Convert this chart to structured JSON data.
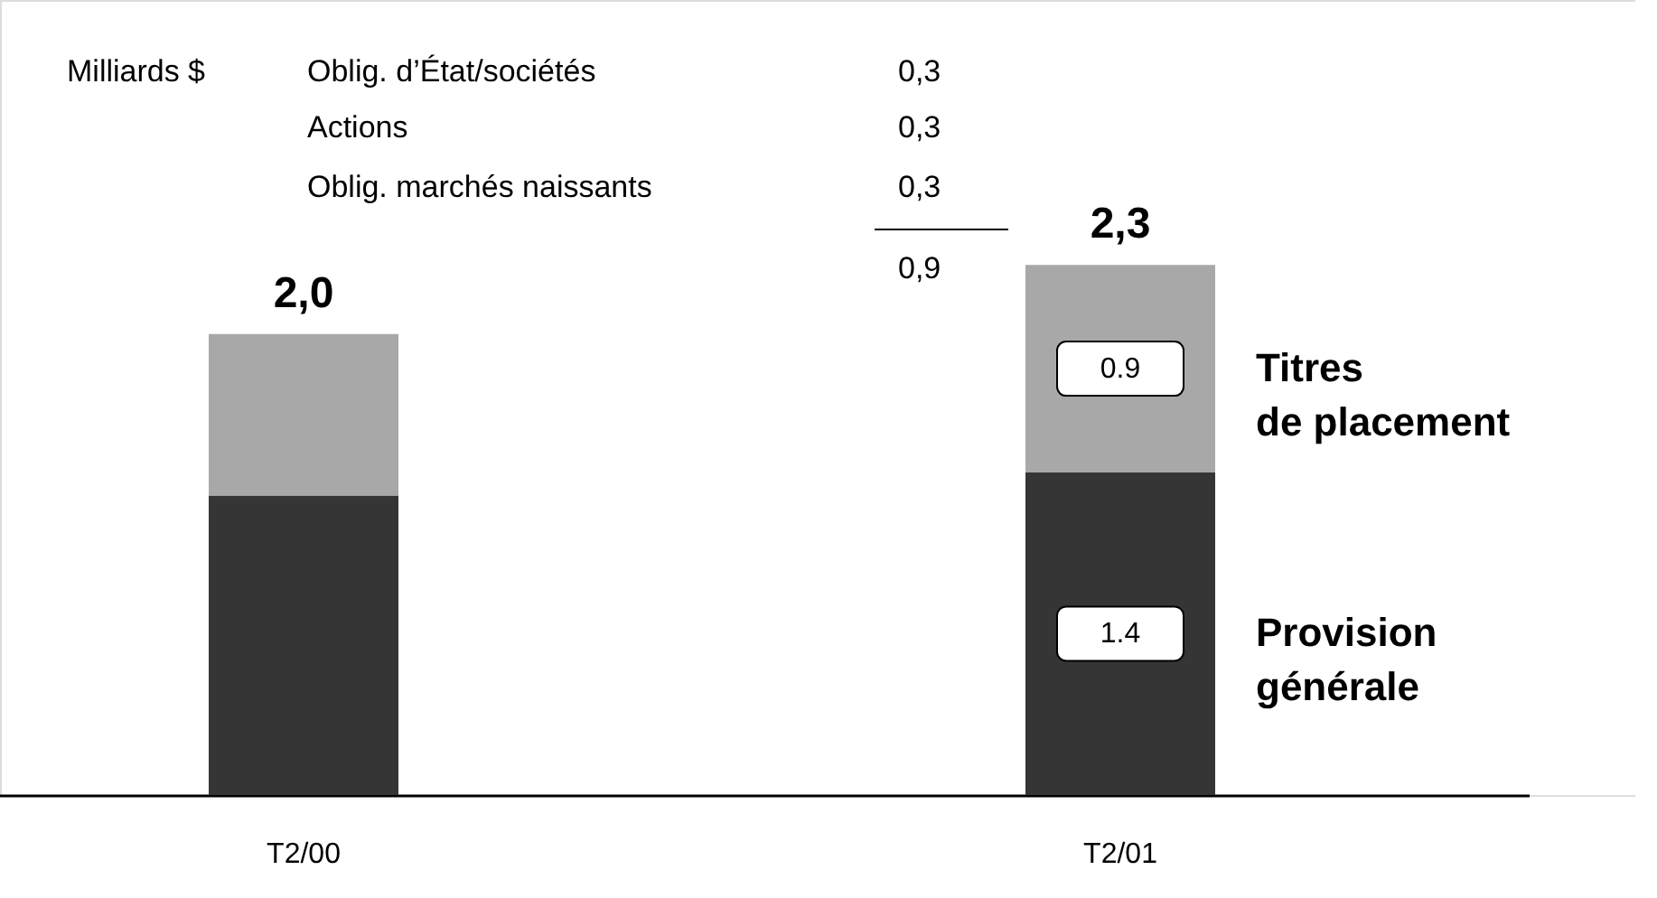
{
  "chart_data": {
    "type": "bar",
    "stacked": true,
    "categories": [
      "T2/00",
      "T2/01"
    ],
    "series": [
      {
        "name": "Provision générale",
        "color": "#353535",
        "values": [
          1.3,
          1.4
        ],
        "value_labels": [
          null,
          "1.4"
        ]
      },
      {
        "name": "Titres de placement",
        "color": "#a8a8a8",
        "values": [
          0.7,
          0.9
        ],
        "value_labels": [
          null,
          "0.9"
        ]
      }
    ],
    "totals": [
      "2,0",
      "2,3"
    ],
    "annotations": [
      "Milliards $",
      "Oblig. d’État/sociétés",
      "0,3",
      "Actions",
      "0,3",
      "Oblig. marchés naissants",
      "0,3",
      "0,9"
    ],
    "grid": false
  }
}
